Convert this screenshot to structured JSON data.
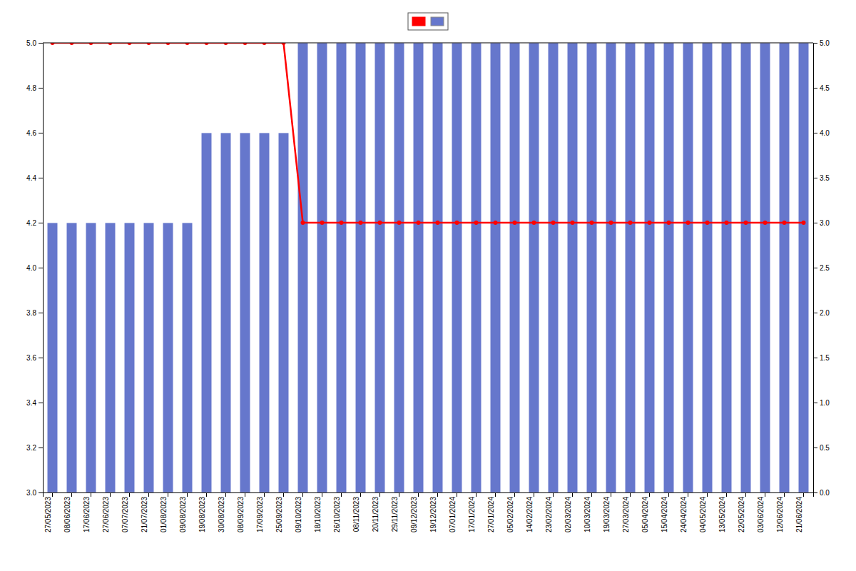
{
  "chart_data": {
    "type": "bar",
    "categories": [
      "27/05/2023",
      "08/06/2023",
      "17/06/2023",
      "27/06/2023",
      "07/07/2023",
      "21/07/2023",
      "01/08/2023",
      "09/08/2023",
      "19/08/2023",
      "30/08/2023",
      "08/09/2023",
      "17/09/2023",
      "25/09/2023",
      "09/10/2023",
      "18/10/2023",
      "26/10/2023",
      "08/11/2023",
      "20/11/2023",
      "29/11/2023",
      "09/12/2023",
      "19/12/2023",
      "07/01/2024",
      "17/01/2024",
      "27/01/2024",
      "05/02/2024",
      "14/02/2024",
      "23/02/2024",
      "02/03/2024",
      "10/03/2024",
      "19/03/2024",
      "27/03/2024",
      "05/04/2024",
      "15/04/2024",
      "24/04/2024",
      "04/05/2024",
      "13/05/2024",
      "22/05/2024",
      "03/06/2024",
      "12/06/2024",
      "21/06/2024"
    ],
    "series": [
      {
        "type": "bar",
        "color": "#6677cc",
        "values": [
          4.2,
          4.2,
          4.2,
          4.2,
          4.2,
          4.2,
          4.2,
          4.2,
          4.6,
          4.6,
          4.6,
          4.6,
          4.6,
          5.0,
          5.0,
          5.0,
          5.0,
          5.0,
          5.0,
          5.0,
          5.0,
          5.0,
          5.0,
          5.0,
          5.0,
          5.0,
          5.0,
          5.0,
          5.0,
          5.0,
          5.0,
          5.0,
          5.0,
          5.0,
          5.0,
          5.0,
          5.0,
          5.0,
          5.0,
          5.0
        ]
      },
      {
        "type": "line",
        "color": "#ff0000",
        "marker": "o",
        "values": [
          5.0,
          5.0,
          5.0,
          5.0,
          5.0,
          5.0,
          5.0,
          5.0,
          5.0,
          5.0,
          5.0,
          5.0,
          5.0,
          4.2,
          4.2,
          4.2,
          4.2,
          4.2,
          4.2,
          4.2,
          4.2,
          4.2,
          4.2,
          4.2,
          4.2,
          4.2,
          4.2,
          4.2,
          4.2,
          4.2,
          4.2,
          4.2,
          4.2,
          4.2,
          4.2,
          4.2,
          4.2,
          4.2,
          4.2,
          4.2
        ]
      }
    ],
    "ylim": [
      3.0,
      5.0
    ],
    "yticks": [
      {
        "value": 3.0,
        "label": "3.0"
      },
      3.2,
      3.4,
      3.6,
      3.8,
      {
        "value": 4.0,
        "label": "4.0"
      },
      4.2,
      4.4,
      4.6,
      4.8,
      {
        "value": 5.0,
        "label": "5.0"
      }
    ],
    "y2lim": [
      0.0,
      5.0
    ],
    "y2ticks": [
      {
        "value": 0.0,
        "label": "0.0"
      },
      0.5,
      {
        "value": 1.0,
        "label": "1.0"
      },
      1.5,
      {
        "value": 2.0,
        "label": "2.0"
      },
      2.5,
      {
        "value": 3.0,
        "label": "3.0"
      },
      3.5,
      {
        "value": 4.0,
        "label": "4.0"
      },
      4.5,
      {
        "value": 5.0,
        "label": "5.0"
      }
    ],
    "grid": false,
    "legend": "top"
  }
}
